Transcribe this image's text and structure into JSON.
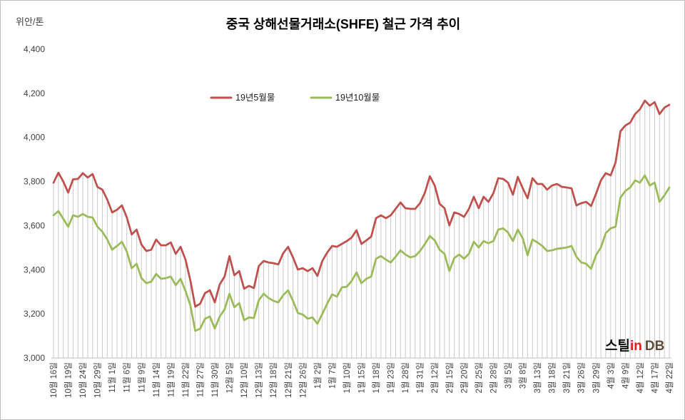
{
  "chart_data": {
    "type": "line",
    "title": "중국 상해선물거래소(SHFE) 철근 가격 추이",
    "ylabel": "위안/톤",
    "ylim": [
      3000,
      4400
    ],
    "ytick_labels": [
      "3,000",
      "3,200",
      "3,400",
      "3,600",
      "3,800",
      "4,000",
      "4,200",
      "4,400"
    ],
    "x_tick_labels": [
      "10월 16일",
      "10월 19일",
      "10월 24일",
      "10월 29일",
      "11월 1일",
      "11월 6일",
      "11월 9일",
      "11월 14일",
      "11월 19일",
      "11월 22일",
      "11월 27일",
      "11월 30일",
      "12월 5일",
      "12월 10일",
      "12월 13일",
      "12월 18일",
      "12월 21일",
      "12월 26일",
      "1월 2일",
      "1월 7일",
      "1월 10일",
      "1월 15일",
      "1월 18일",
      "1월 23일",
      "1월 28일",
      "1월 31일",
      "2월 12일",
      "2월 15일",
      "2월 20일",
      "2월 25일",
      "2월 28일",
      "3월 5일",
      "3월 8일",
      "3월 13일",
      "3월 18일",
      "3월 21일",
      "3월 26일",
      "3월 29일",
      "4월 3일",
      "4월 9일",
      "4월 12일",
      "4월 17일",
      "4월 22일"
    ],
    "grid": false,
    "drop_lines": true,
    "legend_position": "top-center",
    "series": [
      {
        "name": "19년5월물",
        "color": "#c0504d",
        "values": [
          3795,
          3840,
          3800,
          3750,
          3810,
          3812,
          3838,
          3818,
          3834,
          3775,
          3763,
          3718,
          3660,
          3672,
          3692,
          3637,
          3560,
          3582,
          3514,
          3485,
          3491,
          3537,
          3511,
          3511,
          3524,
          3472,
          3504,
          3446,
          3352,
          3233,
          3246,
          3294,
          3307,
          3252,
          3333,
          3369,
          3462,
          3375,
          3394,
          3314,
          3327,
          3317,
          3417,
          3440,
          3433,
          3430,
          3424,
          3475,
          3504,
          3456,
          3401,
          3407,
          3394,
          3407,
          3372,
          3440,
          3478,
          3508,
          3504,
          3517,
          3530,
          3546,
          3579,
          3517,
          3533,
          3550,
          3634,
          3647,
          3634,
          3647,
          3676,
          3705,
          3679,
          3676,
          3676,
          3702,
          3750,
          3824,
          3782,
          3699,
          3679,
          3601,
          3660,
          3653,
          3640,
          3676,
          3731,
          3679,
          3731,
          3708,
          3747,
          3815,
          3812,
          3795,
          3740,
          3821,
          3770,
          3724,
          3815,
          3789,
          3789,
          3763,
          3782,
          3789,
          3776,
          3773,
          3769,
          3692,
          3702,
          3708,
          3689,
          3744,
          3805,
          3838,
          3828,
          3886,
          4028,
          4054,
          4067,
          4106,
          4128,
          4167,
          4144,
          4160,
          4106,
          4135,
          4148
        ]
      },
      {
        "name": "19년10월물",
        "color": "#9bbb59",
        "values": [
          3647,
          3666,
          3631,
          3595,
          3647,
          3640,
          3653,
          3640,
          3637,
          3595,
          3572,
          3537,
          3491,
          3508,
          3527,
          3482,
          3407,
          3427,
          3362,
          3339,
          3346,
          3381,
          3359,
          3362,
          3369,
          3330,
          3359,
          3304,
          3239,
          3123,
          3133,
          3178,
          3188,
          3133,
          3188,
          3220,
          3291,
          3230,
          3249,
          3171,
          3184,
          3181,
          3262,
          3291,
          3272,
          3259,
          3252,
          3285,
          3307,
          3259,
          3204,
          3197,
          3178,
          3184,
          3155,
          3200,
          3246,
          3288,
          3278,
          3320,
          3323,
          3349,
          3388,
          3339,
          3359,
          3369,
          3450,
          3462,
          3446,
          3433,
          3459,
          3488,
          3469,
          3456,
          3462,
          3485,
          3517,
          3553,
          3533,
          3491,
          3472,
          3394,
          3453,
          3469,
          3450,
          3472,
          3527,
          3501,
          3530,
          3520,
          3530,
          3582,
          3588,
          3569,
          3530,
          3582,
          3543,
          3466,
          3537,
          3524,
          3508,
          3485,
          3488,
          3495,
          3498,
          3501,
          3508,
          3459,
          3433,
          3427,
          3404,
          3466,
          3501,
          3566,
          3588,
          3595,
          3727,
          3757,
          3773,
          3805,
          3795,
          3828,
          3782,
          3795,
          3708,
          3737,
          3773
        ]
      }
    ]
  },
  "logo": {
    "text_1": "스틸",
    "text_2": "in",
    "text_3": "DB"
  }
}
